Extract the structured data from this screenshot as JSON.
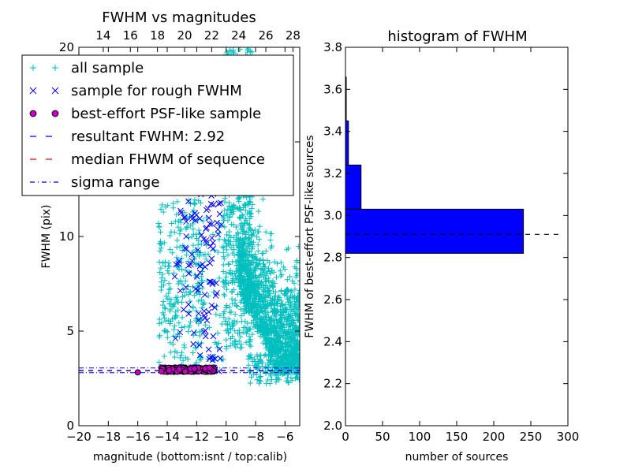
{
  "chart_data": [
    {
      "type": "scatter",
      "title": "FWHM vs magnitudes",
      "xlabel": "magnitude (bottom:isnt / top:calib)",
      "ylabel": "FWHM (pix)",
      "xlim": [
        -20,
        -5
      ],
      "ylim": [
        0,
        20
      ],
      "x_ticks": [
        "−20",
        "−18",
        "−16",
        "−14",
        "−12",
        "−10",
        "−8",
        "−6"
      ],
      "x_tick_values": [
        -20,
        -18,
        -16,
        -14,
        -12,
        -10,
        -8,
        -6
      ],
      "y_ticks": [
        "0",
        "5",
        "10",
        "15",
        "20"
      ],
      "y_tick_values": [
        0,
        5,
        10,
        15,
        20
      ],
      "top_x_ticks": [
        "14",
        "16",
        "18",
        "20",
        "22",
        "24",
        "26",
        "28"
      ],
      "top_x_tick_values": [
        14,
        16,
        18,
        20,
        22,
        24,
        26,
        28
      ],
      "top_xlim": [
        12.2,
        28.5
      ],
      "legend_position": "top-left",
      "legend": [
        {
          "label": "all sample",
          "marker": "plus",
          "color": "#00bfbf"
        },
        {
          "label": "sample for rough FWHM",
          "marker": "x",
          "color": "#0000ff"
        },
        {
          "label": "best-effort PSF-like sample",
          "marker": "circle",
          "color": "#bf00bf"
        },
        {
          "label": "resultant FWHM: 2.92",
          "marker": "dashed",
          "color": "#0000ff"
        },
        {
          "label": "median FHWM of sequence",
          "marker": "dashed",
          "color": "#ff0000"
        },
        {
          "label": "sigma range",
          "marker": "dashdot",
          "color": "#0000ff"
        }
      ],
      "resultant_fwhm": 2.92,
      "median_fwhm": 2.9,
      "sigma_range": [
        2.8,
        3.05
      ],
      "series_summary": {
        "all_sample": {
          "x_range": [
            -14.8,
            -5
          ],
          "y_range": [
            2.2,
            20
          ]
        },
        "rough_sample": {
          "x_range": [
            -14.5,
            -10.3
          ],
          "y_range": [
            2.8,
            12.8
          ]
        },
        "psf_like_sample": {
          "x_range": [
            -16,
            -10.8
          ],
          "y_range": [
            2.7,
            3.1
          ]
        }
      }
    },
    {
      "type": "bar",
      "orientation": "horizontal",
      "title": "histogram of FWHM",
      "xlabel": "number of sources",
      "ylabel": "FWHM of best-effort PSF-like sources",
      "xlim": [
        0,
        300
      ],
      "ylim": [
        2.0,
        3.8
      ],
      "x_ticks": [
        "0",
        "50",
        "100",
        "150",
        "200",
        "250",
        "300"
      ],
      "x_tick_values": [
        0,
        50,
        100,
        150,
        200,
        250,
        300
      ],
      "y_ticks": [
        "2.0",
        "2.2",
        "2.4",
        "2.6",
        "2.8",
        "3.0",
        "3.2",
        "3.4",
        "3.6",
        "3.8"
      ],
      "y_tick_values": [
        2.0,
        2.2,
        2.4,
        2.6,
        2.8,
        3.0,
        3.2,
        3.4,
        3.6,
        3.8
      ],
      "bins": [
        {
          "y0": 2.82,
          "y1": 3.03,
          "count": 240
        },
        {
          "y0": 3.03,
          "y1": 3.24,
          "count": 21
        },
        {
          "y0": 3.24,
          "y1": 3.45,
          "count": 4
        },
        {
          "y0": 3.45,
          "y1": 3.66,
          "count": 0
        }
      ],
      "bar_color": "#0000ff",
      "reference_line": {
        "y": 2.91,
        "x_end": 288,
        "style": "dashed",
        "color": "#000000"
      }
    }
  ]
}
